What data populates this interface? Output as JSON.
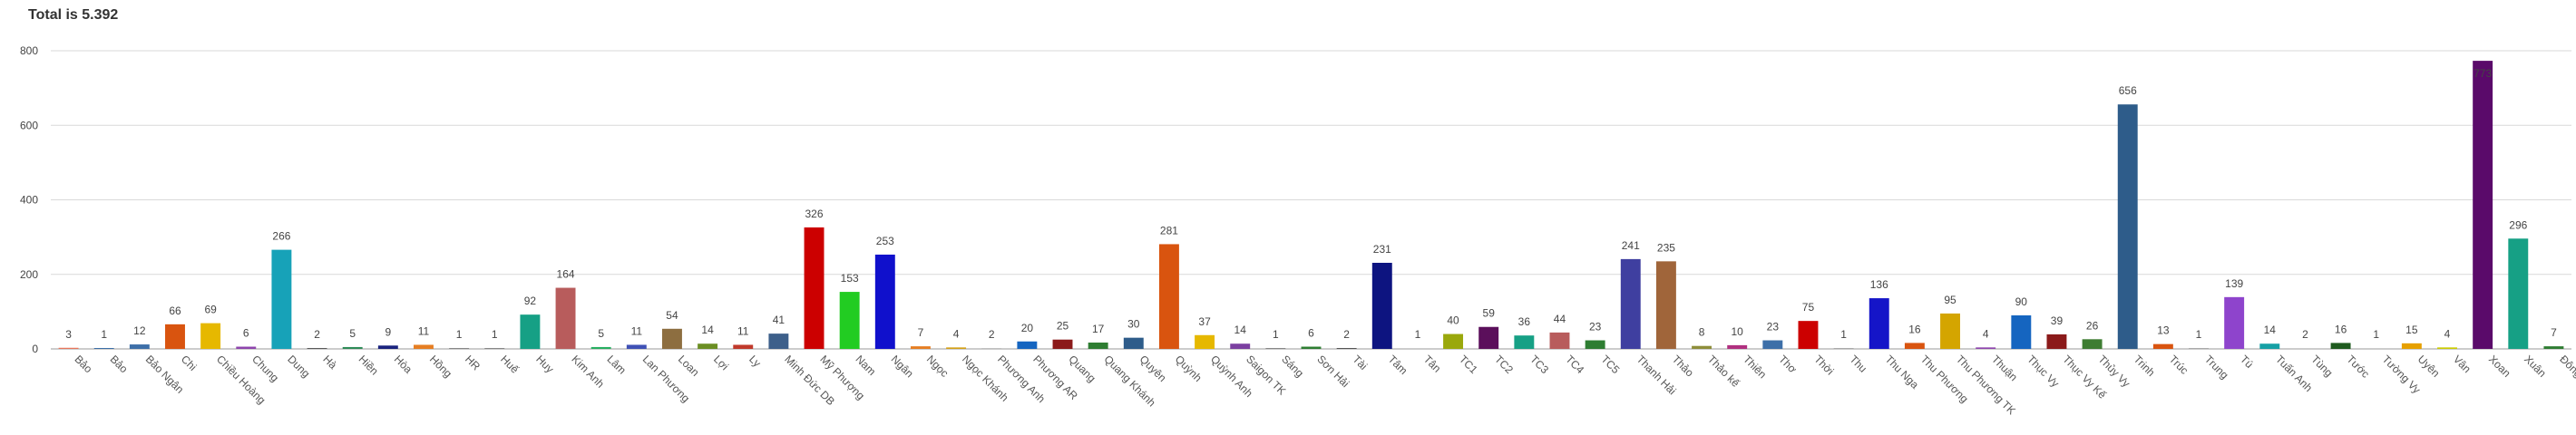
{
  "chart_data": {
    "type": "bar",
    "title": "Total is 5.392",
    "xlabel": "",
    "ylabel": "",
    "ylim": [
      0,
      800
    ],
    "yticks": [
      0,
      200,
      400,
      600,
      800
    ],
    "grid": true,
    "legend": "none",
    "categories": [
      "Bảo",
      "Bảo",
      "Bảo Ngân",
      "Chi",
      "Chiều Hoàng",
      "Chung",
      "Dung",
      "Hà",
      "Hiền",
      "Hòa",
      "Hồng",
      "HR",
      "Huế",
      "Huy",
      "Kim Anh",
      "Lâm",
      "Lan Phương",
      "Loan",
      "Lợi",
      "Ly",
      "Minh Đức DB",
      "Mỹ Phượng",
      "Nam",
      "Ngân",
      "Ngọc",
      "Ngọc Khánh",
      "Phương Anh",
      "Phương AR",
      "Quang",
      "Quang Khánh",
      "Quyên",
      "Quỳnh",
      "Quỳnh Anh",
      "Saigon TK",
      "Sáng",
      "Sơn Hải",
      "Tài",
      "Tâm",
      "Tân",
      "TC1",
      "TC2",
      "TC3",
      "TC4",
      "TC5",
      "Thanh Hải",
      "Thảo",
      "Thảo kế",
      "Thiên",
      "Thơ",
      "Thời",
      "Thu",
      "Thu Nga",
      "Thu Phương",
      "Thu Phương TK",
      "Thuận",
      "Thục Vy",
      "Thục Vy Kế",
      "Thủy Vy",
      "Trinh",
      "Trúc",
      "Trung",
      "Tú",
      "Tuấn Anh",
      "Tùng",
      "Tước",
      "Tường Vy",
      "Uyên",
      "Vân",
      "Xoan",
      "Xuân",
      "Đông"
    ],
    "values": [
      3,
      1,
      12,
      66,
      69,
      6,
      266,
      2,
      5,
      9,
      11,
      1,
      1,
      92,
      164,
      5,
      11,
      54,
      14,
      11,
      41,
      326,
      153,
      253,
      7,
      4,
      2,
      20,
      25,
      17,
      30,
      281,
      37,
      14,
      1,
      6,
      2,
      231,
      1,
      40,
      59,
      36,
      44,
      23,
      241,
      235,
      8,
      10,
      23,
      75,
      1,
      136,
      16,
      95,
      4,
      90,
      39,
      26,
      656,
      13,
      1,
      139,
      14,
      2,
      16,
      1,
      15,
      4,
      773,
      296,
      7
    ],
    "colors": [
      "#e8775c",
      "#3d6fa8",
      "#3d6fa8",
      "#d9540f",
      "#e6b800",
      "#8e44ad",
      "#17a2b8",
      "#5a5a5a",
      "#2e8b57",
      "#1a237e",
      "#e67e22",
      "#888888",
      "#888888",
      "#16a085",
      "#b85c5c",
      "#27ae60",
      "#3f51b5",
      "#8d6e40",
      "#6b8e23",
      "#c0392b",
      "#3d5f8a",
      "#cc0000",
      "#22cc22",
      "#1010cc",
      "#e67e22",
      "#d4a017",
      "#c0c0c0",
      "#1565c0",
      "#8b1a1a",
      "#2e7d32",
      "#2e5c8a",
      "#d9540f",
      "#e6b800",
      "#7b3fa0",
      "#888888",
      "#2e7d32",
      "#555555",
      "#0d1480",
      "#cccccc",
      "#9aa80c",
      "#5b0f5b",
      "#16a085",
      "#b85c5c",
      "#2e7d32",
      "#3f3fa0",
      "#a0653a",
      "#8e8e3a",
      "#b03080",
      "#3d6fa8",
      "#cc0000",
      "#aaaaaa",
      "#1515c8",
      "#d9540f",
      "#d4a500",
      "#8e44ad",
      "#1565c0",
      "#8b1a1a",
      "#3e7d32",
      "#2e5c8a",
      "#d9540f",
      "#aaaaaa",
      "#8e44cc",
      "#16a0a5",
      "#cccccc",
      "#1e5a1e",
      "#cccccc",
      "#e6a000",
      "#cccc00",
      "#5a0a6a",
      "#16a085",
      "#2e7d32"
    ],
    "label_colors": {
      "default": "#444444",
      "inside": "#ffffff"
    }
  }
}
